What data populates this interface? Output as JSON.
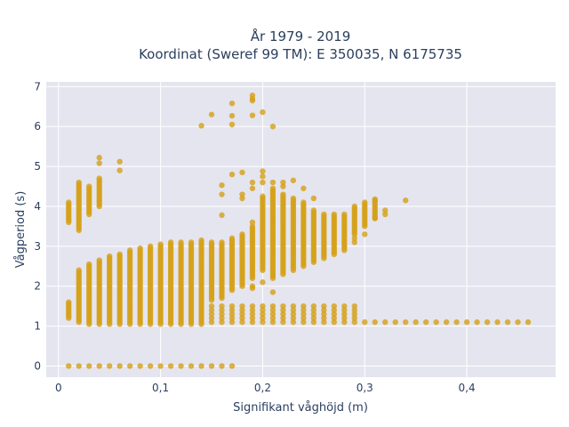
{
  "chart_data": {
    "type": "scatter",
    "title_line1": "År 1979 - 2019",
    "title_line2": "Koordinat (Sweref 99 TM): E 350035, N 6175735",
    "xlabel": "Signifikant våghöjd (m)",
    "ylabel": "Vågperiod (s)",
    "xlim": [
      -0.012,
      0.487
    ],
    "ylim": [
      -0.28,
      7.12
    ],
    "xticks": [
      0,
      0.1,
      0.2,
      0.3,
      0.4
    ],
    "xtick_labels": [
      "0",
      "0,1",
      "0,2",
      "0,3",
      "0,4"
    ],
    "yticks": [
      0,
      1,
      2,
      3,
      4,
      5,
      6,
      7
    ],
    "ytick_labels": [
      "0",
      "1",
      "2",
      "3",
      "4",
      "5",
      "6",
      "7"
    ],
    "grid": true,
    "legend": "none",
    "colors": {
      "marker": "#d4a017",
      "plot_bg": "#e5e5f0",
      "grid": "#ffffff",
      "text": "#2a3f5f"
    },
    "vertical_bands": [
      {
        "x": 0.01,
        "y_min": 1.2,
        "y_max": 1.6
      },
      {
        "x": 0.01,
        "y_min": 3.6,
        "y_max": 4.1
      },
      {
        "x": 0.02,
        "y_min": 1.1,
        "y_max": 2.4
      },
      {
        "x": 0.02,
        "y_min": 3.4,
        "y_max": 4.6
      },
      {
        "x": 0.03,
        "y_min": 1.05,
        "y_max": 2.55
      },
      {
        "x": 0.03,
        "y_min": 3.8,
        "y_max": 4.5
      },
      {
        "x": 0.04,
        "y_min": 1.05,
        "y_max": 2.65
      },
      {
        "x": 0.04,
        "y_min": 4.0,
        "y_max": 4.7
      },
      {
        "x": 0.05,
        "y_min": 1.05,
        "y_max": 2.75
      },
      {
        "x": 0.06,
        "y_min": 1.05,
        "y_max": 2.8
      },
      {
        "x": 0.07,
        "y_min": 1.05,
        "y_max": 2.9
      },
      {
        "x": 0.08,
        "y_min": 1.05,
        "y_max": 2.95
      },
      {
        "x": 0.09,
        "y_min": 1.05,
        "y_max": 3.0
      },
      {
        "x": 0.1,
        "y_min": 1.05,
        "y_max": 3.05
      },
      {
        "x": 0.11,
        "y_min": 1.05,
        "y_max": 3.1
      },
      {
        "x": 0.12,
        "y_min": 1.05,
        "y_max": 3.1
      },
      {
        "x": 0.13,
        "y_min": 1.05,
        "y_max": 3.1
      },
      {
        "x": 0.14,
        "y_min": 1.05,
        "y_max": 3.15
      },
      {
        "x": 0.15,
        "y_min": 1.65,
        "y_max": 3.1
      },
      {
        "x": 0.16,
        "y_min": 1.7,
        "y_max": 3.1
      },
      {
        "x": 0.17,
        "y_min": 1.9,
        "y_max": 3.2
      },
      {
        "x": 0.18,
        "y_min": 2.0,
        "y_max": 3.3
      },
      {
        "x": 0.19,
        "y_min": 2.2,
        "y_max": 3.5
      },
      {
        "x": 0.2,
        "y_min": 2.4,
        "y_max": 4.25
      },
      {
        "x": 0.21,
        "y_min": 2.2,
        "y_max": 4.4
      },
      {
        "x": 0.22,
        "y_min": 2.3,
        "y_max": 4.3
      },
      {
        "x": 0.23,
        "y_min": 2.4,
        "y_max": 4.2
      },
      {
        "x": 0.24,
        "y_min": 2.5,
        "y_max": 4.1
      },
      {
        "x": 0.25,
        "y_min": 2.6,
        "y_max": 3.9
      },
      {
        "x": 0.26,
        "y_min": 2.7,
        "y_max": 3.8
      },
      {
        "x": 0.27,
        "y_min": 2.8,
        "y_max": 3.8
      },
      {
        "x": 0.28,
        "y_min": 2.9,
        "y_max": 3.8
      },
      {
        "x": 0.29,
        "y_min": 3.3,
        "y_max": 4.0
      },
      {
        "x": 0.3,
        "y_min": 3.5,
        "y_max": 4.1
      },
      {
        "x": 0.31,
        "y_min": 3.7,
        "y_max": 4.15
      }
    ],
    "low_row_y": 1.1,
    "low_row_x": [
      0.15,
      0.16,
      0.17,
      0.18,
      0.19,
      0.2,
      0.21,
      0.22,
      0.23,
      0.24,
      0.25,
      0.26,
      0.27,
      0.28,
      0.29,
      0.3,
      0.31,
      0.32,
      0.33,
      0.34,
      0.35,
      0.36,
      0.37,
      0.38,
      0.39,
      0.4,
      0.41,
      0.42,
      0.43,
      0.44,
      0.45,
      0.46
    ],
    "zero_row_x": [
      0.01,
      0.02,
      0.03,
      0.04,
      0.05,
      0.06,
      0.07,
      0.08,
      0.09,
      0.1,
      0.11,
      0.12,
      0.13,
      0.14,
      0.15,
      0.16,
      0.17
    ],
    "scattered_points": [
      {
        "x": 0.04,
        "y": 5.22
      },
      {
        "x": 0.04,
        "y": 5.08
      },
      {
        "x": 0.06,
        "y": 5.12
      },
      {
        "x": 0.06,
        "y": 4.9
      },
      {
        "x": 0.14,
        "y": 6.02
      },
      {
        "x": 0.15,
        "y": 6.3
      },
      {
        "x": 0.17,
        "y": 6.58
      },
      {
        "x": 0.17,
        "y": 6.27
      },
      {
        "x": 0.17,
        "y": 6.05
      },
      {
        "x": 0.19,
        "y": 6.78
      },
      {
        "x": 0.19,
        "y": 6.7
      },
      {
        "x": 0.19,
        "y": 6.65
      },
      {
        "x": 0.19,
        "y": 6.28
      },
      {
        "x": 0.2,
        "y": 6.36
      },
      {
        "x": 0.21,
        "y": 6.0
      },
      {
        "x": 0.16,
        "y": 4.53
      },
      {
        "x": 0.16,
        "y": 4.3
      },
      {
        "x": 0.16,
        "y": 3.78
      },
      {
        "x": 0.17,
        "y": 4.8
      },
      {
        "x": 0.18,
        "y": 4.85
      },
      {
        "x": 0.18,
        "y": 4.3
      },
      {
        "x": 0.18,
        "y": 4.2
      },
      {
        "x": 0.19,
        "y": 4.6
      },
      {
        "x": 0.19,
        "y": 4.45
      },
      {
        "x": 0.19,
        "y": 3.6
      },
      {
        "x": 0.2,
        "y": 4.88
      },
      {
        "x": 0.2,
        "y": 4.75
      },
      {
        "x": 0.2,
        "y": 4.6
      },
      {
        "x": 0.21,
        "y": 4.6
      },
      {
        "x": 0.21,
        "y": 4.45
      },
      {
        "x": 0.22,
        "y": 4.6
      },
      {
        "x": 0.22,
        "y": 4.5
      },
      {
        "x": 0.23,
        "y": 4.65
      },
      {
        "x": 0.24,
        "y": 4.45
      },
      {
        "x": 0.25,
        "y": 4.2
      },
      {
        "x": 0.19,
        "y": 2.0
      },
      {
        "x": 0.19,
        "y": 1.95
      },
      {
        "x": 0.21,
        "y": 1.85
      },
      {
        "x": 0.2,
        "y": 2.1
      },
      {
        "x": 0.29,
        "y": 3.2
      },
      {
        "x": 0.29,
        "y": 3.1
      },
      {
        "x": 0.3,
        "y": 3.3
      },
      {
        "x": 0.31,
        "y": 3.7
      },
      {
        "x": 0.32,
        "y": 3.9
      },
      {
        "x": 0.32,
        "y": 3.8
      },
      {
        "x": 0.34,
        "y": 4.15
      },
      {
        "x": 0.31,
        "y": 4.18
      }
    ]
  }
}
